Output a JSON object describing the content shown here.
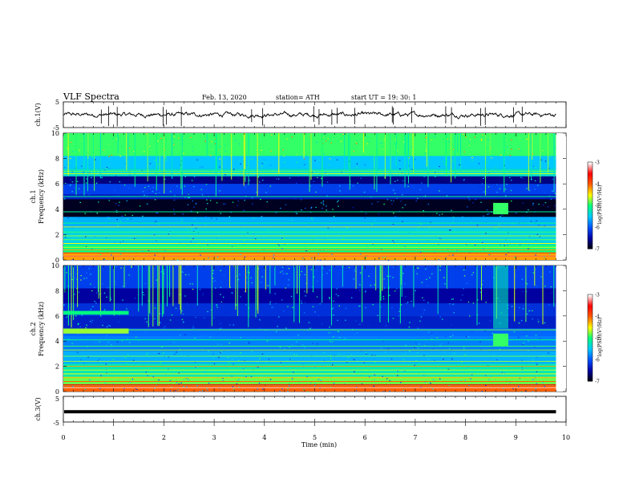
{
  "header": {
    "title": "VLF  Spectra",
    "date": "Feb. 13, 2020",
    "station": "station= ATH",
    "start": "start  UT  =    19: 30: 1"
  },
  "chart_data": [
    {
      "type": "line",
      "panel": "ch1-waveform",
      "ylabel": "ch.1(V)",
      "ylim": [
        -5,
        5
      ],
      "yticks": [
        "5",
        "-5"
      ],
      "xlim": [
        0,
        10
      ],
      "trace_level": 0,
      "trace_color": "#000000"
    },
    {
      "type": "heatmap",
      "panel": "ch1-spectrogram",
      "ylabel_top": "ch.1",
      "ylabel": "Frequency  (kHz)",
      "ylim": [
        0,
        10
      ],
      "yticks": [
        "0",
        "2",
        "4",
        "6",
        "8",
        "10"
      ],
      "xlim": [
        0,
        10
      ],
      "data_end_min": 9.8,
      "colorbar": {
        "label": "log(PSD)(V²/Hz)",
        "range": [
          -7,
          -3
        ],
        "ticks": [
          "-3",
          "-4",
          "-5",
          "-6",
          "-7"
        ],
        "colors": [
          "#000000",
          "#0000a0",
          "#0050ff",
          "#00c8ff",
          "#00ff80",
          "#ffff00",
          "#ff6000",
          "#ff0000",
          "#ffffff"
        ]
      }
    },
    {
      "type": "heatmap",
      "panel": "ch2-spectrogram",
      "ylabel_top": "ch.2",
      "ylabel": "Frequency  (kHz)",
      "ylim": [
        0,
        10
      ],
      "yticks": [
        "0",
        "2",
        "4",
        "6",
        "8",
        "10"
      ],
      "xlim": [
        0,
        10
      ],
      "data_end_min": 9.8,
      "colorbar": {
        "label": "log(PSD)(V²/Hz)",
        "range": [
          -7,
          -3
        ],
        "ticks": [
          "-3",
          "-4",
          "-5",
          "-6",
          "-7"
        ]
      }
    },
    {
      "type": "line",
      "panel": "ch3-waveform",
      "ylabel": "ch.3(V)",
      "ylim": [
        -5,
        5
      ],
      "yticks": [
        "5",
        "-5"
      ],
      "xlim": [
        0,
        10
      ],
      "xticks": [
        "0",
        "1",
        "2",
        "3",
        "4",
        "5",
        "6",
        "7",
        "8",
        "9",
        "10"
      ],
      "xlabel": "Time  (min)",
      "trace_level": -1,
      "trace_color": "#000000"
    }
  ]
}
